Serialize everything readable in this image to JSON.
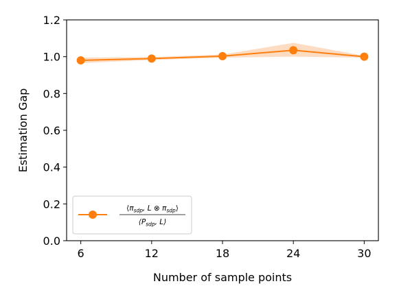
{
  "chart_data": {
    "type": "line",
    "title": "",
    "xlabel": "Number of sample points",
    "ylabel": "Estimation Gap",
    "x": [
      6,
      12,
      18,
      24,
      30
    ],
    "x_ticks": [
      "6",
      "12",
      "18",
      "24",
      "30"
    ],
    "y_ticks": [
      "0.0",
      "0.2",
      "0.4",
      "0.6",
      "0.8",
      "1.0",
      "1.2"
    ],
    "xlim": [
      4.8,
      31.2
    ],
    "ylim": [
      0.0,
      1.2
    ],
    "grid": false,
    "legend_position": "lower-left",
    "series": [
      {
        "name": "⟨π_sdp, L ⊗ π_sdp⟩ / ⟨P_sdp, L⟩",
        "values": [
          0.98,
          0.99,
          1.003,
          1.035,
          1.0
        ],
        "band_lower": [
          0.965,
          0.982,
          0.995,
          1.0,
          0.995
        ],
        "band_upper": [
          0.995,
          0.998,
          1.012,
          1.075,
          1.005
        ],
        "color": "#ff7f0e",
        "band_color": "#fdd8bb",
        "marker": "circle"
      }
    ],
    "legend": {
      "num_1": "⟨",
      "num_2": "π",
      "num_3": "sdp",
      "num_4": ", L ⊗ π",
      "num_5": "sdp",
      "num_6": "⟩",
      "den_1": "⟨P",
      "den_2": "sdp",
      "den_3": ", L⟩"
    }
  }
}
